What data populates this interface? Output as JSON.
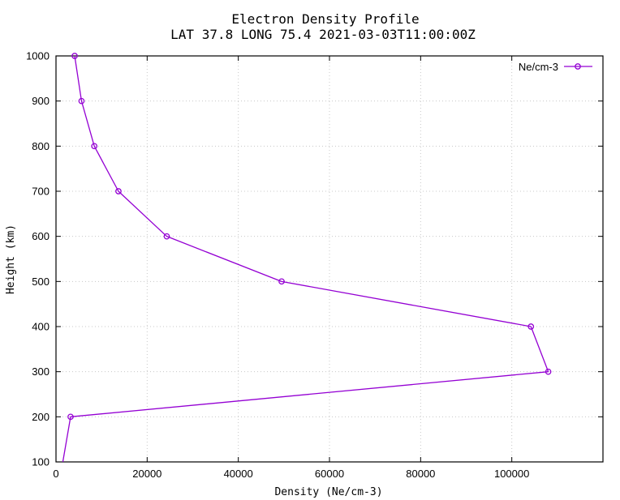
{
  "chart_data": {
    "type": "line",
    "title_lines": [
      "Electron Density Profile",
      "LAT 37.8 LONG 75.4 2021-03-03T11:00:00Z"
    ],
    "xlabel": "Density (Ne/cm-3)",
    "ylabel": "Height (km)",
    "xlim": [
      0,
      120000
    ],
    "ylim": [
      100,
      1000
    ],
    "xticks": [
      0,
      20000,
      40000,
      60000,
      80000,
      100000
    ],
    "yticks": [
      100,
      200,
      300,
      400,
      500,
      600,
      700,
      800,
      900,
      1000
    ],
    "grid": true,
    "legend_position": "top-right",
    "series": [
      {
        "name": "Ne/cm-3",
        "color": "#9400d3",
        "marker": "circle",
        "points": [
          {
            "x": 1500,
            "y": 100
          },
          {
            "x": 3200,
            "y": 200
          },
          {
            "x": 108000,
            "y": 300
          },
          {
            "x": 104200,
            "y": 400
          },
          {
            "x": 49500,
            "y": 500
          },
          {
            "x": 24300,
            "y": 600
          },
          {
            "x": 13700,
            "y": 700
          },
          {
            "x": 8400,
            "y": 800
          },
          {
            "x": 5600,
            "y": 900
          },
          {
            "x": 4100,
            "y": 1000
          }
        ]
      }
    ]
  }
}
